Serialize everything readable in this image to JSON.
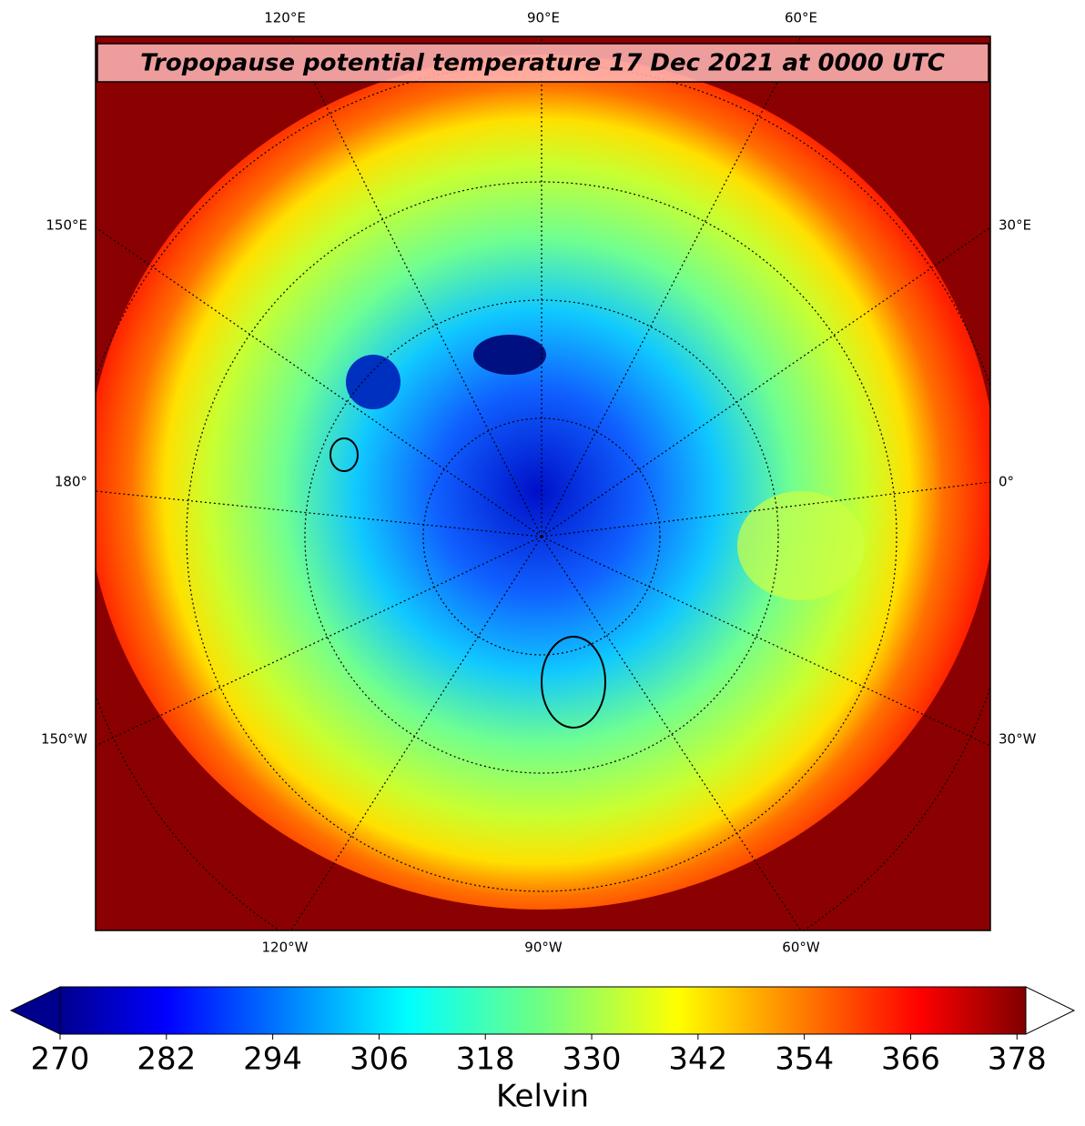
{
  "map": {
    "title": "Tropopause potential temperature 17 Dec 2021 at 0000 UTC",
    "top_labels": [
      "120°E",
      "90°E",
      "60°E"
    ],
    "bottom_labels": [
      "120°W",
      "90°W",
      "60°W"
    ],
    "left_labels": [
      "150°E",
      "180°",
      "150°W"
    ],
    "right_labels": [
      "30°E",
      "0°",
      "30°W"
    ]
  },
  "colorbar": {
    "label": "Kelvin",
    "lim": [
      270,
      379
    ],
    "ticks": [
      270,
      282,
      294,
      306,
      318,
      330,
      342,
      354,
      366,
      378
    ]
  }
}
